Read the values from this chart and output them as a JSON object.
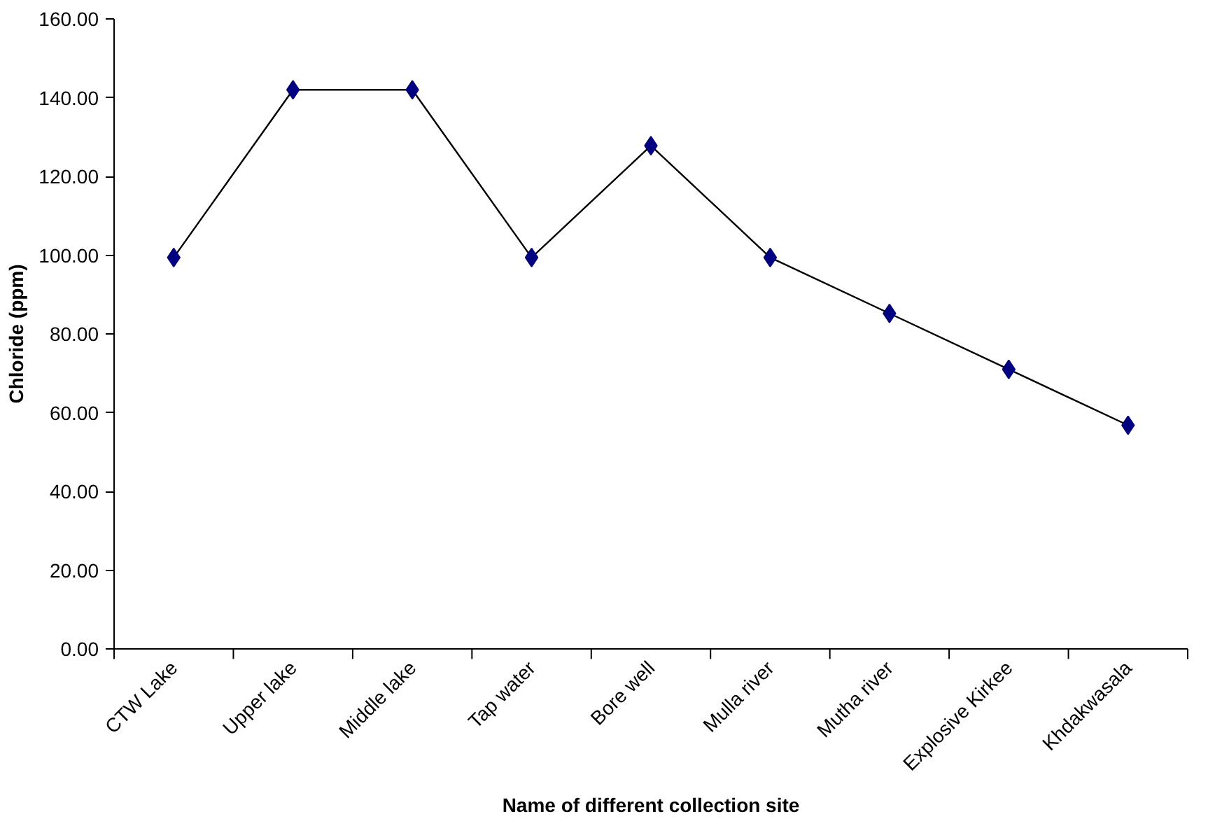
{
  "chart_data": {
    "type": "line",
    "xlabel": "Name of different collection site",
    "ylabel": "Chloride (ppm)",
    "categories": [
      "CTW Lake",
      "Upper lake",
      "Middle lake",
      "Tap water",
      "Bore well",
      "Mulla river",
      "Mutha river",
      "Explosive Kirkee",
      "Khdakwasala"
    ],
    "series": [
      {
        "color": "#000080",
        "values": [
          99.4,
          142,
          142,
          99.4,
          127.8,
          99.4,
          85.2,
          71,
          56.8
        ]
      }
    ],
    "ylim": [
      0,
      160
    ],
    "yticks": [
      {
        "value": 0,
        "label": "0.00"
      },
      {
        "value": 20,
        "label": "20.00"
      },
      {
        "value": 40,
        "label": "40.00"
      },
      {
        "value": 60,
        "label": "60.00"
      },
      {
        "value": 80,
        "label": "80.00"
      },
      {
        "value": 100,
        "label": "100.00"
      },
      {
        "value": 120,
        "label": "120.00"
      },
      {
        "value": 140,
        "label": "140.00"
      },
      {
        "value": 160,
        "label": "160.00"
      }
    ],
    "grid": false,
    "marker": "diamond",
    "line_style": "solid"
  }
}
